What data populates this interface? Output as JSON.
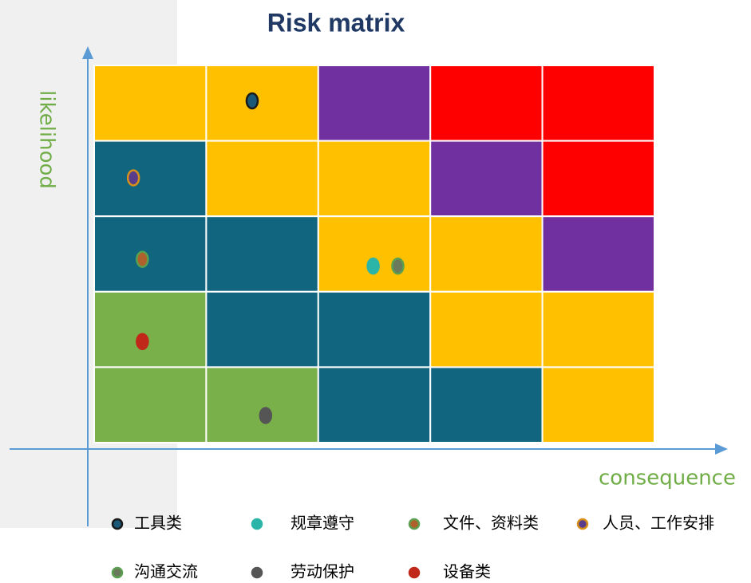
{
  "chart_data": {
    "type": "scatter",
    "title": "Risk matrix",
    "x_label": "consequence",
    "y_label": "likelihood",
    "xlim": [
      0,
      5
    ],
    "ylim": [
      0,
      5
    ],
    "cells": [
      [
        "#ffc000",
        "#ffc000",
        "#7030a0",
        "#ff0000",
        "#ff0000"
      ],
      [
        "#11657e",
        "#ffc000",
        "#ffc000",
        "#7030a0",
        "#ff0000"
      ],
      [
        "#11657e",
        "#11657e",
        "#ffc000",
        "#ffc000",
        "#7030a0"
      ],
      [
        "#79b04a",
        "#11657e",
        "#11657e",
        "#ffc000",
        "#ffc000"
      ],
      [
        "#79b04a",
        "#79b04a",
        "#11657e",
        "#11657e",
        "#ffc000"
      ]
    ],
    "series": [
      {
        "name": "工具类",
        "color": "#1a5a78",
        "edge": "#1a1a1a",
        "x": [
          1.41
        ],
        "values": [
          4.53
        ]
      },
      {
        "name": "规章遵守",
        "color": "#2bb5a8",
        "edge": "#2bb5a8",
        "x": [
          2.49
        ],
        "values": [
          2.34
        ]
      },
      {
        "name": "文件、资料类",
        "color": "#b0602a",
        "edge": "#5aa050",
        "x": [
          0.43
        ],
        "values": [
          2.43
        ]
      },
      {
        "name": "人员、工作安排",
        "color": "#5a3d8a",
        "edge": "#d8901a",
        "x": [
          0.35
        ],
        "values": [
          3.51
        ]
      },
      {
        "name": "沟通交流",
        "color": "#6a7a5a",
        "edge": "#5aa050",
        "x": [
          2.71
        ],
        "values": [
          2.34
        ]
      },
      {
        "name": "劳动保护",
        "color": "#555555",
        "edge": "#555555",
        "x": [
          1.53
        ],
        "values": [
          0.36
        ]
      },
      {
        "name": "设备类",
        "color": "#c0281a",
        "edge": "#c0281a",
        "x": [
          0.43
        ],
        "values": [
          1.34
        ]
      }
    ]
  }
}
